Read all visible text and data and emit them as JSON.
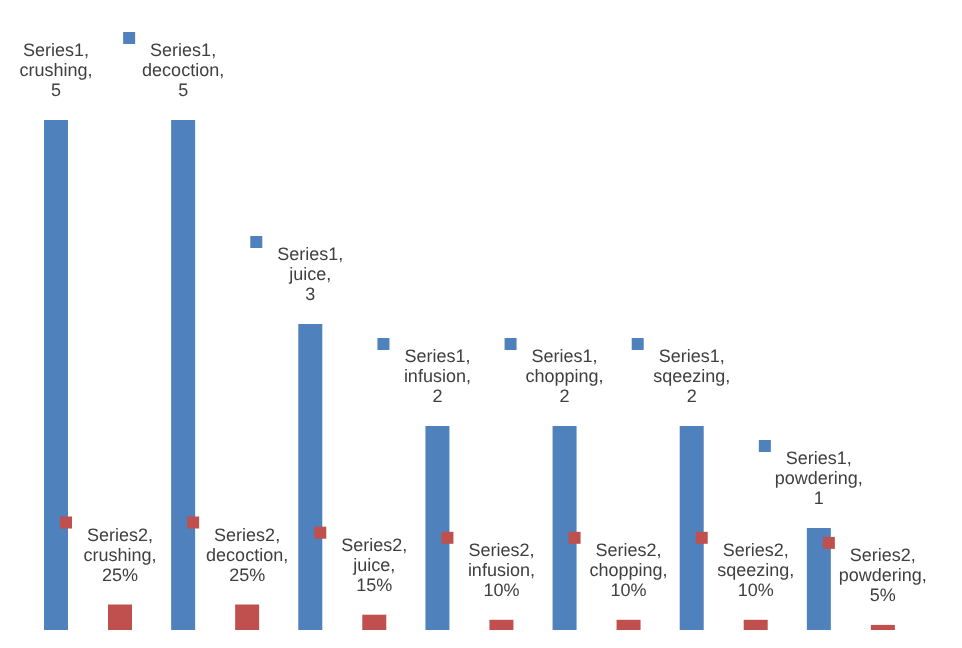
{
  "chart_data": {
    "type": "bar",
    "categories": [
      null,
      null,
      null,
      null,
      null,
      null,
      null
    ],
    "series": [
      {
        "color": "#4f81bd",
        "values": [
          5,
          5,
          3,
          2,
          2,
          2,
          1
        ],
        "value_labels": [
          "Series1, crushing, 5",
          "Series1, decoction, 5",
          "Series1, juice, 3",
          "Series1, infusion, 2",
          "Series1, chopping, 2",
          "Series1, sqeezing, 2",
          "Series1, powdering, 1"
        ]
      },
      {
        "color": "#c0504d",
        "values": [
          0.25,
          0.25,
          0.15,
          0.1,
          0.1,
          0.1,
          0.05
        ],
        "value_labels": [
          "Series2, crushing, 25%",
          "Series2, decoction, 25%",
          "Series2, juice, 15%",
          "Series2, infusion, 10%",
          "Series2, chopping, 10%",
          "Series2, sqeezing, 10%",
          "Series2, powdering, 5%"
        ]
      }
    ],
    "legend": false,
    "grid": false,
    "tick_labels": false
  }
}
